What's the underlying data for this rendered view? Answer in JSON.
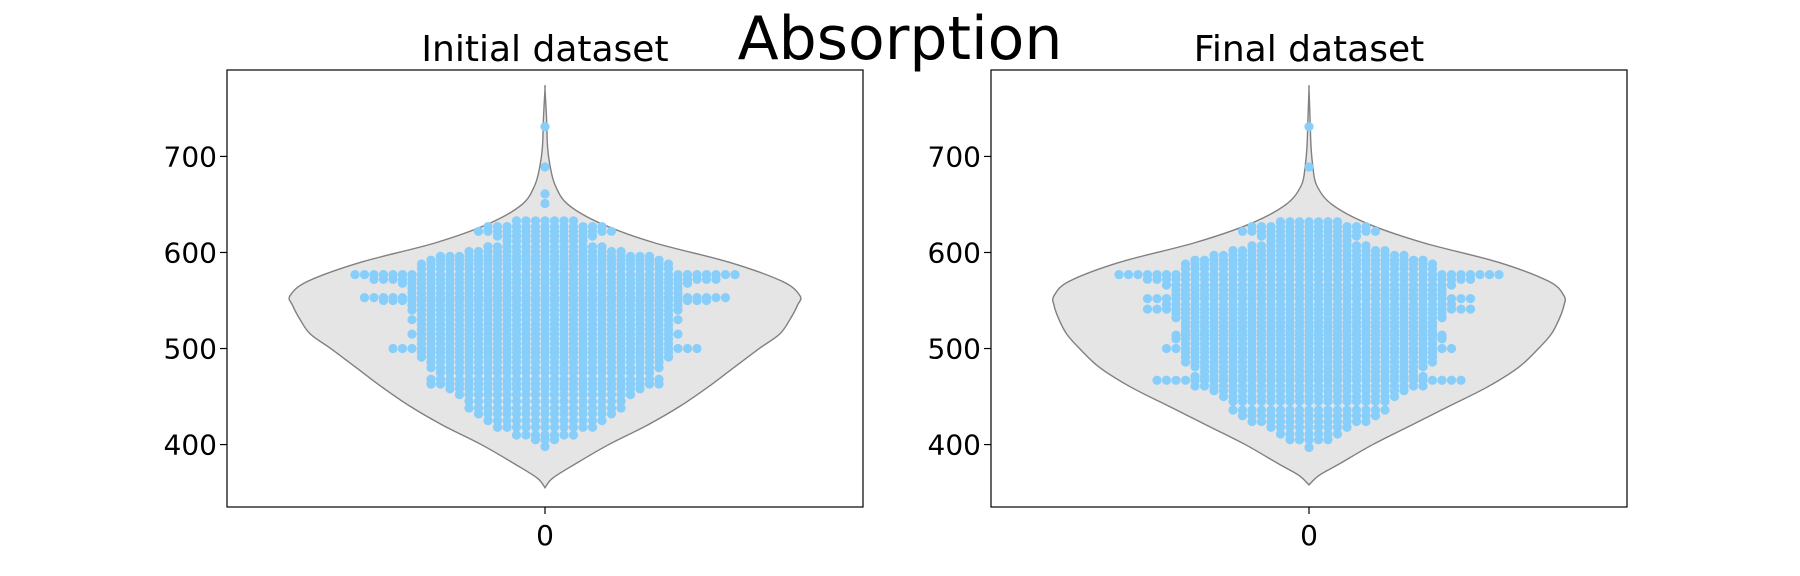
{
  "figure": {
    "title": "Absorption"
  },
  "colors": {
    "violin_fill": "#e5e5e5",
    "violin_edge": "#808080",
    "points": "#87cefa",
    "axes": "#000000"
  },
  "chart_data": [
    {
      "type": "violin+swarm",
      "title": "Initial dataset",
      "categories": [
        "0"
      ],
      "ylim": [
        335,
        790
      ],
      "yticks": [
        400,
        500,
        600,
        700
      ],
      "violin_extent": [
        355,
        770
      ],
      "violin_density": [
        [
          355,
          0.0
        ],
        [
          365,
          0.03
        ],
        [
          380,
          0.12
        ],
        [
          400,
          0.25
        ],
        [
          420,
          0.4
        ],
        [
          440,
          0.53
        ],
        [
          460,
          0.64
        ],
        [
          480,
          0.74
        ],
        [
          500,
          0.84
        ],
        [
          515,
          0.92
        ],
        [
          530,
          0.96
        ],
        [
          545,
          0.99
        ],
        [
          555,
          1.0
        ],
        [
          570,
          0.93
        ],
        [
          590,
          0.72
        ],
        [
          610,
          0.43
        ],
        [
          630,
          0.22
        ],
        [
          650,
          0.09
        ],
        [
          670,
          0.04
        ],
        [
          690,
          0.02
        ],
        [
          710,
          0.01
        ],
        [
          740,
          0.006
        ],
        [
          770,
          0.0
        ]
      ],
      "points": [
        [
          398,
          0
        ],
        [
          405,
          1
        ],
        [
          410,
          3
        ],
        [
          418,
          5
        ],
        [
          425,
          6
        ],
        [
          432,
          7
        ],
        [
          438,
          8
        ],
        [
          445,
          8
        ],
        [
          452,
          9
        ],
        [
          458,
          10
        ],
        [
          463,
          12
        ],
        [
          468,
          12
        ],
        [
          475,
          11
        ],
        [
          480,
          12
        ],
        [
          486,
          12
        ],
        [
          491,
          13
        ],
        [
          496,
          13
        ],
        [
          500,
          16
        ],
        [
          505,
          13
        ],
        [
          510,
          13
        ],
        [
          515,
          14
        ],
        [
          520,
          13
        ],
        [
          525,
          13
        ],
        [
          530,
          14
        ],
        [
          535,
          13
        ],
        [
          540,
          14
        ],
        [
          545,
          14
        ],
        [
          550,
          17
        ],
        [
          553,
          19
        ],
        [
          558,
          14
        ],
        [
          563,
          14
        ],
        [
          568,
          15
        ],
        [
          572,
          18
        ],
        [
          577,
          20
        ],
        [
          583,
          13
        ],
        [
          588,
          13
        ],
        [
          592,
          12
        ],
        [
          596,
          11
        ],
        [
          601,
          8
        ],
        [
          606,
          6
        ],
        [
          612,
          4
        ],
        [
          617,
          5
        ],
        [
          622,
          7
        ],
        [
          627,
          6
        ],
        [
          633,
          3
        ],
        [
          651,
          0
        ],
        [
          661,
          0
        ],
        [
          689,
          0
        ],
        [
          731,
          0
        ]
      ]
    },
    {
      "type": "violin+swarm",
      "title": "Final dataset",
      "categories": [
        "0"
      ],
      "ylim": [
        335,
        790
      ],
      "yticks": [
        400,
        500,
        600,
        700
      ],
      "violin_extent": [
        358,
        770
      ],
      "violin_density": [
        [
          358,
          0.0
        ],
        [
          368,
          0.04
        ],
        [
          380,
          0.12
        ],
        [
          400,
          0.25
        ],
        [
          420,
          0.4
        ],
        [
          440,
          0.55
        ],
        [
          460,
          0.7
        ],
        [
          480,
          0.82
        ],
        [
          500,
          0.9
        ],
        [
          515,
          0.95
        ],
        [
          530,
          0.98
        ],
        [
          545,
          1.0
        ],
        [
          555,
          1.0
        ],
        [
          570,
          0.94
        ],
        [
          590,
          0.74
        ],
        [
          610,
          0.45
        ],
        [
          630,
          0.23
        ],
        [
          650,
          0.09
        ],
        [
          670,
          0.03
        ],
        [
          690,
          0.015
        ],
        [
          710,
          0.008
        ],
        [
          740,
          0.004
        ],
        [
          770,
          0.0
        ]
      ],
      "points": [
        [
          397,
          0
        ],
        [
          405,
          2
        ],
        [
          411,
          3
        ],
        [
          418,
          4
        ],
        [
          424,
          6
        ],
        [
          430,
          7
        ],
        [
          436,
          8
        ],
        [
          445,
          8
        ],
        [
          450,
          9
        ],
        [
          456,
          10
        ],
        [
          461,
          12
        ],
        [
          467,
          16
        ],
        [
          471,
          12
        ],
        [
          476,
          11
        ],
        [
          481,
          12
        ],
        [
          486,
          13
        ],
        [
          491,
          13
        ],
        [
          496,
          13
        ],
        [
          500,
          15
        ],
        [
          505,
          13
        ],
        [
          510,
          14
        ],
        [
          514,
          14
        ],
        [
          518,
          13
        ],
        [
          523,
          13
        ],
        [
          527,
          13
        ],
        [
          532,
          14
        ],
        [
          537,
          14
        ],
        [
          541,
          17
        ],
        [
          546,
          15
        ],
        [
          552,
          17
        ],
        [
          556,
          14
        ],
        [
          561,
          14
        ],
        [
          566,
          15
        ],
        [
          572,
          17
        ],
        [
          577,
          20
        ],
        [
          583,
          13
        ],
        [
          588,
          13
        ],
        [
          592,
          12
        ],
        [
          597,
          10
        ],
        [
          602,
          8
        ],
        [
          607,
          6
        ],
        [
          612,
          4
        ],
        [
          617,
          5
        ],
        [
          622,
          7
        ],
        [
          627,
          6
        ],
        [
          632,
          3
        ],
        [
          689,
          0
        ],
        [
          731,
          0
        ]
      ]
    }
  ]
}
